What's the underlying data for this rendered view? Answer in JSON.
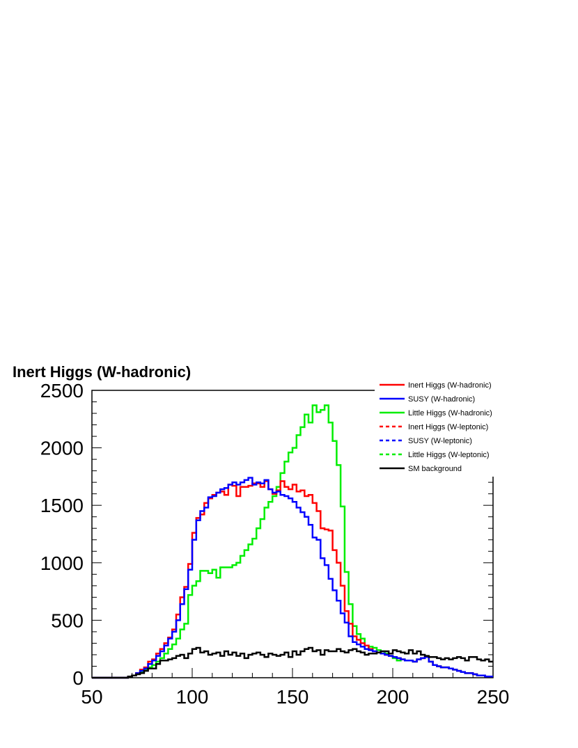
{
  "chart_data": {
    "type": "line",
    "title": "Inert Higgs (W-hadronic)",
    "xlabel": "",
    "ylabel": "",
    "xlim": [
      50,
      250
    ],
    "ylim": [
      0,
      2500
    ],
    "x_ticks": [
      "50",
      "100",
      "150",
      "200",
      "250"
    ],
    "y_ticks": [
      "0",
      "500",
      "1000",
      "1500",
      "2000",
      "2500"
    ],
    "bin_width": 2,
    "legend": [
      {
        "label": "Inert Higgs (W-hadronic)",
        "color": "#ff0000",
        "style": "solid"
      },
      {
        "label": "SUSY (W-hadronic)",
        "color": "#0000ff",
        "style": "solid"
      },
      {
        "label": "Little Higgs (W-hadronic)",
        "color": "#00ee00",
        "style": "solid"
      },
      {
        "label": "Inert Higgs (W-leptonic)",
        "color": "#ff0000",
        "style": "dashed"
      },
      {
        "label": "SUSY (W-leptonic)",
        "color": "#0000ff",
        "style": "dashed"
      },
      {
        "label": "Little Higgs (W-leptonic)",
        "color": "#00ee00",
        "style": "dashed"
      },
      {
        "label": "SM background",
        "color": "#000000",
        "style": "solid"
      }
    ],
    "series": [
      {
        "name": "Little Higgs (W-hadronic)",
        "color": "#00ee00",
        "values": [
          0,
          0,
          0,
          0,
          0,
          0,
          0,
          0,
          0,
          10,
          20,
          35,
          50,
          70,
          90,
          110,
          140,
          170,
          210,
          250,
          290,
          340,
          420,
          470,
          720,
          800,
          840,
          930,
          930,
          910,
          940,
          870,
          960,
          960,
          960,
          980,
          1000,
          1060,
          1110,
          1160,
          1210,
          1300,
          1380,
          1480,
          1530,
          1580,
          1660,
          1780,
          1880,
          1960,
          2000,
          2110,
          2180,
          2290,
          2220,
          2370,
          2310,
          2330,
          2370,
          2220,
          2060,
          1850,
          1490,
          920,
          640,
          450,
          380,
          340,
          280,
          270,
          260,
          240,
          230,
          210,
          190,
          170,
          150,
          160,
          150,
          150,
          140,
          160,
          170,
          180,
          140,
          110,
          100,
          90,
          90,
          80,
          70,
          60,
          50,
          40,
          40,
          30,
          20,
          20,
          10,
          10
        ]
      },
      {
        "name": "Inert Higgs (W-hadronic)",
        "color": "#ff0000",
        "values": [
          0,
          0,
          0,
          0,
          0,
          0,
          0,
          0,
          0,
          10,
          20,
          40,
          70,
          90,
          140,
          160,
          210,
          250,
          300,
          350,
          420,
          550,
          700,
          790,
          990,
          1260,
          1390,
          1420,
          1520,
          1560,
          1590,
          1610,
          1620,
          1590,
          1680,
          1670,
          1580,
          1660,
          1660,
          1670,
          1690,
          1690,
          1660,
          1710,
          1640,
          1600,
          1630,
          1710,
          1660,
          1640,
          1680,
          1620,
          1630,
          1580,
          1590,
          1520,
          1450,
          1300,
          1290,
          1280,
          1110,
          1000,
          800,
          580,
          470,
          360,
          330,
          300,
          280,
          250,
          230,
          220,
          210,
          200,
          190,
          180,
          170,
          160,
          150,
          150,
          140,
          160,
          170,
          180,
          140,
          110,
          100,
          90,
          90,
          80,
          70,
          60,
          50,
          40,
          40,
          30,
          20,
          20,
          10,
          10
        ]
      },
      {
        "name": "SUSY (W-hadronic)",
        "color": "#0000ff",
        "values": [
          0,
          0,
          0,
          0,
          0,
          0,
          0,
          0,
          0,
          10,
          20,
          40,
          60,
          80,
          120,
          150,
          190,
          230,
          280,
          340,
          400,
          500,
          640,
          770,
          940,
          1200,
          1370,
          1450,
          1480,
          1570,
          1580,
          1610,
          1640,
          1650,
          1680,
          1700,
          1680,
          1700,
          1720,
          1740,
          1680,
          1700,
          1690,
          1720,
          1640,
          1610,
          1620,
          1590,
          1580,
          1560,
          1530,
          1480,
          1440,
          1400,
          1330,
          1220,
          1200,
          1040,
          980,
          860,
          760,
          670,
          560,
          480,
          360,
          310,
          290,
          270,
          250,
          240,
          230,
          220,
          210,
          200,
          190,
          180,
          170,
          160,
          150,
          150,
          140,
          160,
          170,
          180,
          140,
          110,
          100,
          90,
          90,
          80,
          70,
          60,
          50,
          40,
          40,
          30,
          20,
          20,
          10,
          10
        ]
      },
      {
        "name": "SM background",
        "color": "#000000",
        "values": [
          0,
          0,
          0,
          0,
          0,
          0,
          0,
          0,
          0,
          10,
          20,
          30,
          40,
          60,
          80,
          80,
          120,
          150,
          150,
          160,
          170,
          190,
          200,
          170,
          210,
          250,
          260,
          220,
          230,
          200,
          210,
          220,
          190,
          230,
          200,
          220,
          190,
          210,
          170,
          200,
          210,
          220,
          200,
          180,
          210,
          200,
          190,
          200,
          220,
          180,
          230,
          200,
          230,
          250,
          260,
          230,
          240,
          200,
          240,
          230,
          230,
          250,
          230,
          220,
          240,
          250,
          230,
          220,
          200,
          210,
          210,
          220,
          230,
          230,
          210,
          240,
          230,
          220,
          210,
          240,
          210,
          230,
          200,
          190,
          180,
          180,
          170,
          160,
          170,
          160,
          170,
          180,
          170,
          150,
          180,
          180,
          160,
          150,
          160,
          140
        ]
      }
    ]
  }
}
